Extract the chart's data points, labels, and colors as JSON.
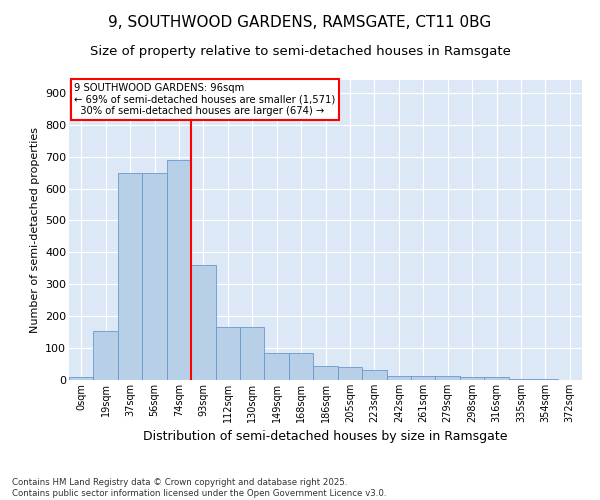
{
  "title1": "9, SOUTHWOOD GARDENS, RAMSGATE, CT11 0BG",
  "title2": "Size of property relative to semi-detached houses in Ramsgate",
  "xlabel": "Distribution of semi-detached houses by size in Ramsgate",
  "ylabel": "Number of semi-detached properties",
  "bin_labels": [
    "0sqm",
    "19sqm",
    "37sqm",
    "56sqm",
    "74sqm",
    "93sqm",
    "112sqm",
    "130sqm",
    "149sqm",
    "168sqm",
    "186sqm",
    "205sqm",
    "223sqm",
    "242sqm",
    "261sqm",
    "279sqm",
    "298sqm",
    "316sqm",
    "335sqm",
    "354sqm",
    "372sqm"
  ],
  "bar_values": [
    10,
    155,
    650,
    650,
    690,
    360,
    165,
    165,
    85,
    85,
    45,
    40,
    30,
    12,
    12,
    12,
    8,
    8,
    4,
    2,
    0
  ],
  "bar_color": "#b8cfe8",
  "bar_edge_color": "#6699cc",
  "property_line_color": "red",
  "annotation_line1": "9 SOUTHWOOD GARDENS: 96sqm",
  "annotation_line2": "← 69% of semi-detached houses are smaller (1,571)",
  "annotation_line3": "  30% of semi-detached houses are larger (674) →",
  "annotation_box_color": "white",
  "annotation_box_edge_color": "red",
  "ylim": [
    0,
    940
  ],
  "yticks": [
    0,
    100,
    200,
    300,
    400,
    500,
    600,
    700,
    800,
    900
  ],
  "background_color": "#dce8f5",
  "footer_text": "Contains HM Land Registry data © Crown copyright and database right 2025.\nContains public sector information licensed under the Open Government Licence v3.0.",
  "title1_fontsize": 11,
  "title2_fontsize": 9.5,
  "xlabel_fontsize": 9,
  "ylabel_fontsize": 8
}
